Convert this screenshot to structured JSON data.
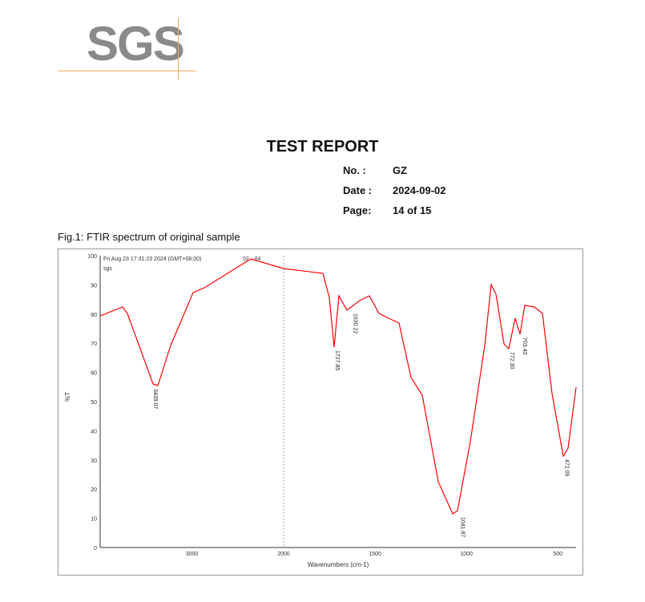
{
  "logo": {
    "text": "SGS"
  },
  "report": {
    "title": "TEST REPORT",
    "no_label": "No. :",
    "no_value": "GZ",
    "date_label": "Date :",
    "date_value": "2024-09-02",
    "page_label": "Page:",
    "page_value": "14 of 15"
  },
  "figure": {
    "caption": "Fig.1: FTIR spectrum of original sample",
    "header_timestamp": "Fri Aug 23 17:31:23 2024 (GMT+08:00)",
    "header_id": "02…84",
    "header_user": "sgs"
  },
  "chart_data": {
    "type": "line",
    "title": "FTIR spectrum of original sample",
    "xlabel": "Wavenumbers (cm-1)",
    "ylabel": "%T",
    "x_ticks": [
      3000,
      2000,
      1500,
      1000,
      500
    ],
    "y_ticks": [
      0,
      10,
      20,
      30,
      40,
      50,
      60,
      70,
      80,
      90,
      100
    ],
    "ylim": [
      0,
      100
    ],
    "x_axis_reversed": true,
    "x_scale_break_at": 2000,
    "grid": false,
    "series": [
      {
        "name": "%T",
        "color": "#ff0000"
      }
    ],
    "peaks": [
      {
        "wavenumber": 3439.07,
        "label": "3439.07"
      },
      {
        "wavenumber": 1727.85,
        "label": "1727.85"
      },
      {
        "wavenumber": 1630.22,
        "label": "1630.22"
      },
      {
        "wavenumber": 1041.87,
        "label": "1041.87"
      },
      {
        "wavenumber": 772.3,
        "label": "772.30"
      },
      {
        "wavenumber": 703.43,
        "label": "703.43"
      },
      {
        "wavenumber": 472.05,
        "label": "472.05"
      }
    ]
  }
}
